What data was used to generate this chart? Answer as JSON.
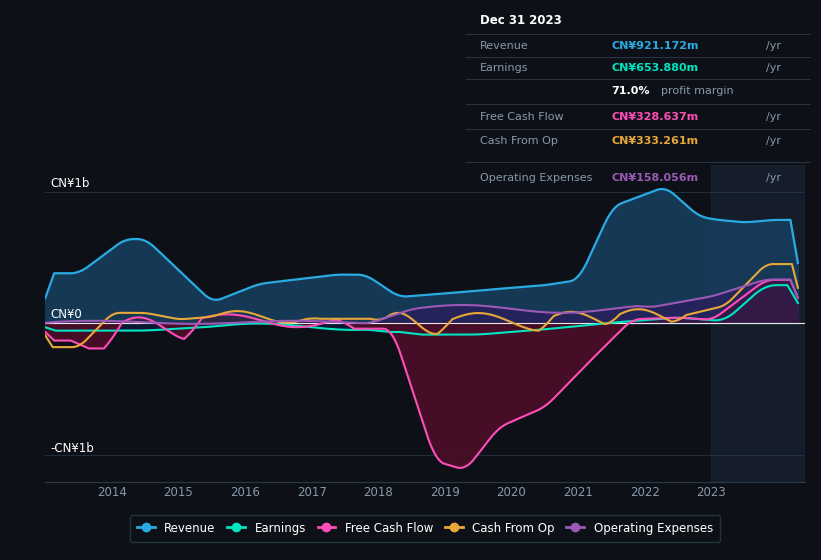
{
  "bg_color": "#0d1117",
  "plot_bg_color": "#0d1117",
  "ylabel_top": "CN¥1b",
  "ylabel_bottom": "-CN¥1b",
  "ylabel_mid": "CN¥0",
  "colors": {
    "revenue": "#29abe2",
    "earnings": "#00e5c0",
    "free_cash_flow": "#ff4db8",
    "cash_from_op": "#e8a838",
    "operating_expenses": "#9b59b6"
  },
  "info_box": {
    "date": "Dec 31 2023",
    "revenue_val": "CN¥921.172m",
    "earnings_val": "CN¥653.880m",
    "profit_margin": "71.0%",
    "free_cash_flow_val": "CN¥328.637m",
    "cash_from_op_val": "CN¥333.261m",
    "operating_expenses_val": "CN¥158.056m"
  },
  "x_ticks": [
    2014,
    2015,
    2016,
    2017,
    2018,
    2019,
    2020,
    2021,
    2022,
    2023
  ],
  "ylim": [
    -1.2,
    1.2
  ],
  "legend_items": [
    "Revenue",
    "Earnings",
    "Free Cash Flow",
    "Cash From Op",
    "Operating Expenses"
  ]
}
